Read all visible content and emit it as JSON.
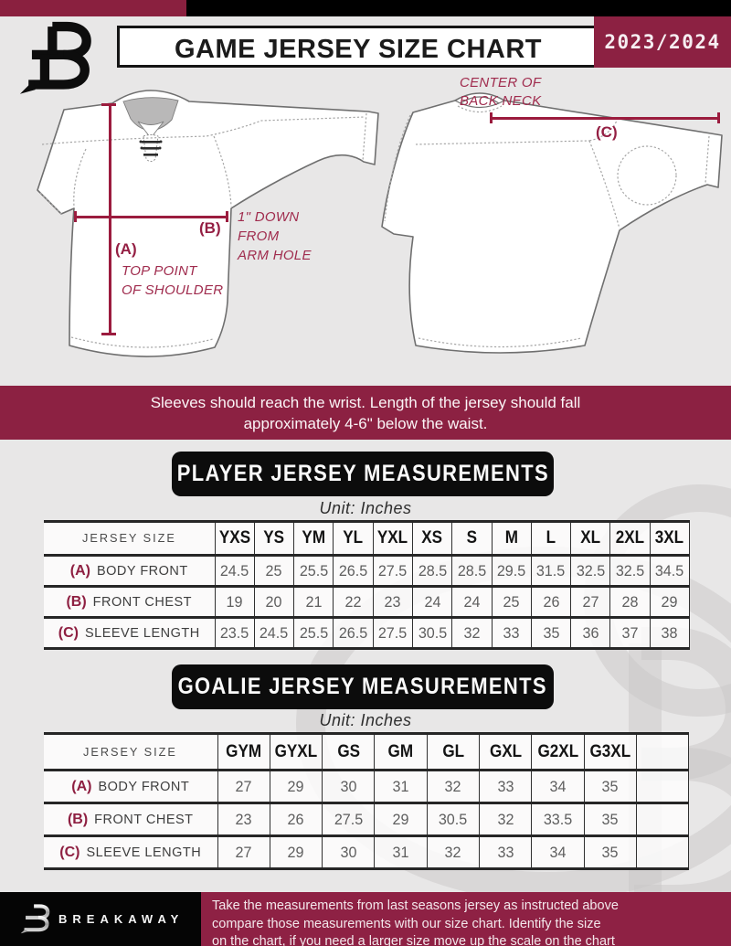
{
  "header": {
    "title": "GAME JERSEY SIZE CHART",
    "season": "2023/2024",
    "logo_icon": "breakaway-b-logo"
  },
  "diagrams": {
    "front": {
      "a_key": "(A)",
      "a_note": [
        "TOP POINT",
        "OF SHOULDER"
      ],
      "b_key": "(B)",
      "b_note": [
        "1\" DOWN",
        "FROM",
        "ARM HOLE"
      ]
    },
    "back": {
      "c_key": "(C)",
      "c_note": [
        "CENTER OF",
        "BACK NECK"
      ]
    }
  },
  "banner": {
    "lines": [
      "Sleeves should reach the wrist. Length of the jersey should fall",
      "approximately 4-6\" below the waist."
    ]
  },
  "player_section": {
    "heading": "PLAYER JERSEY MEASUREMENTS",
    "unit_label": "Unit: Inches",
    "table": {
      "corner_label": "JERSEY SIZE",
      "sizes": [
        "YXS",
        "YS",
        "YM",
        "YL",
        "YXL",
        "XS",
        "S",
        "M",
        "L",
        "XL",
        "2XL",
        "3XL"
      ],
      "rows": [
        {
          "key": "(A)",
          "label": "BODY FRONT",
          "values": [
            "24.5",
            "25",
            "25.5",
            "26.5",
            "27.5",
            "28.5",
            "28.5",
            "29.5",
            "31.5",
            "32.5",
            "32.5",
            "34.5"
          ]
        },
        {
          "key": "(B)",
          "label": "FRONT CHEST",
          "values": [
            "19",
            "20",
            "21",
            "22",
            "23",
            "24",
            "24",
            "25",
            "26",
            "27",
            "28",
            "29"
          ]
        },
        {
          "key": "(C)",
          "label": "SLEEVE LENGTH",
          "values": [
            "23.5",
            "24.5",
            "25.5",
            "26.5",
            "27.5",
            "30.5",
            "32",
            "33",
            "35",
            "36",
            "37",
            "38"
          ]
        }
      ]
    }
  },
  "goalie_section": {
    "heading": "GOALIE JERSEY MEASUREMENTS",
    "unit_label": "Unit: Inches",
    "table": {
      "corner_label": "JERSEY SIZE",
      "sizes": [
        "GYM",
        "GYXL",
        "GS",
        "GM",
        "GL",
        "GXL",
        "G2XL",
        "G3XL"
      ],
      "blank_last_column": true,
      "rows": [
        {
          "key": "(A)",
          "label": "BODY FRONT",
          "values": [
            "27",
            "29",
            "30",
            "31",
            "32",
            "33",
            "34",
            "35"
          ]
        },
        {
          "key": "(B)",
          "label": "FRONT CHEST",
          "values": [
            "23",
            "26",
            "27.5",
            "29",
            "30.5",
            "32",
            "33.5",
            "35"
          ]
        },
        {
          "key": "(C)",
          "label": "SLEEVE LENGTH",
          "values": [
            "27",
            "29",
            "30",
            "31",
            "32",
            "33",
            "34",
            "35"
          ]
        }
      ]
    }
  },
  "footer": {
    "brand": "BREAKAWAY",
    "lines": [
      "Take the measurements from last seasons jersey as instructed above",
      "compare those measurements  with our size chart. Identify the size",
      "on the chart, if you need a larger size move up the scale on the chart"
    ]
  },
  "colors": {
    "maroon": "#8c2142",
    "annotation_maroon": "#9b1c3e",
    "black": "#0d0d0d",
    "background": "#e8e7e7"
  }
}
